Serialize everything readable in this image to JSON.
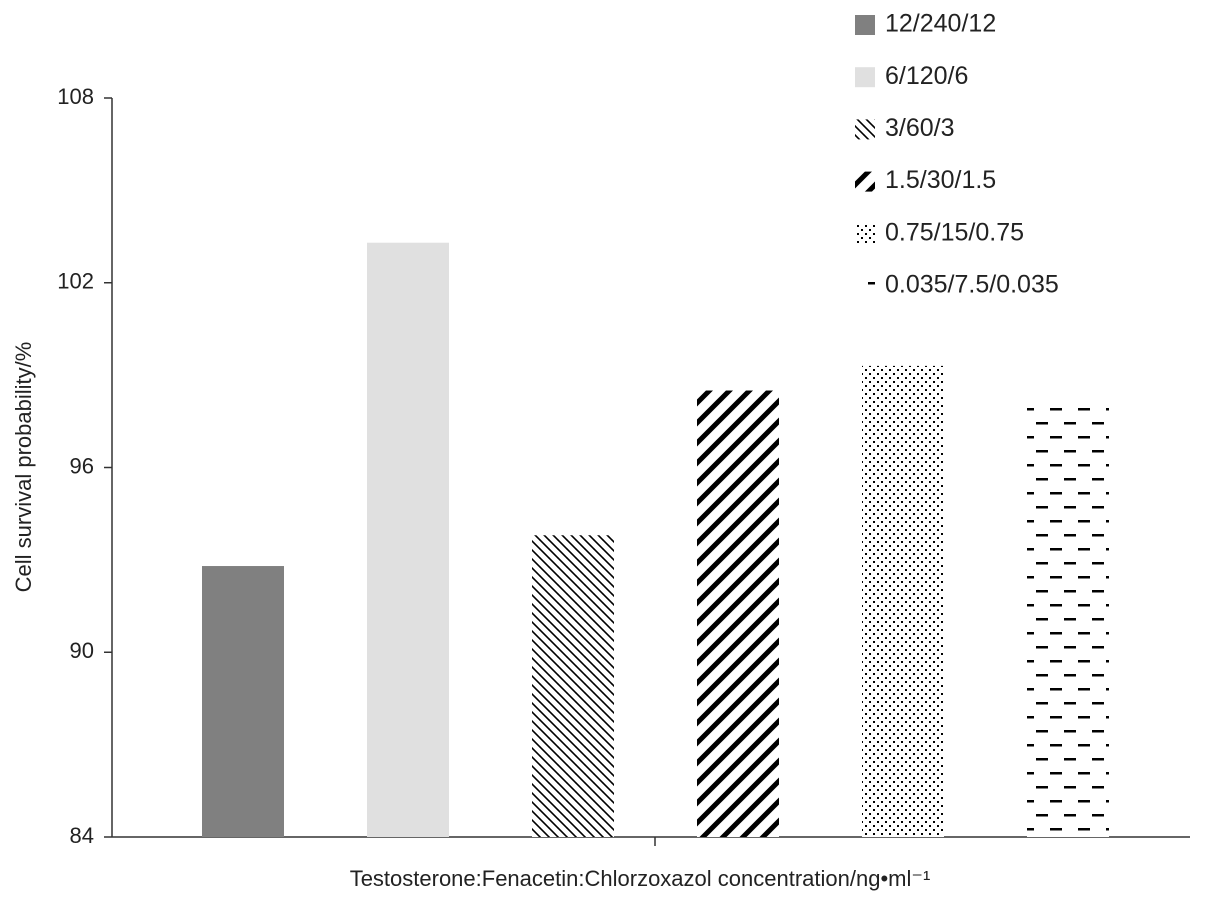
{
  "chart_data": {
    "type": "bar",
    "y_label": "Cell survival probability/%",
    "x_label": "Testosterone:Fenacetin:Chlorzoxazol concentration/ng•ml⁻¹",
    "ylim": [
      84,
      108
    ],
    "yticks": [
      84,
      90,
      96,
      102,
      108
    ],
    "legend": "top-right",
    "series": [
      {
        "name": "12/240/12",
        "color": "#808080",
        "pattern": "solid",
        "values": [
          92.8
        ]
      },
      {
        "name": "6/120/6",
        "color": "#e0e0e0",
        "pattern": "solid",
        "values": [
          103.3
        ]
      },
      {
        "name": "3/60/3",
        "color": "#000000",
        "pattern": "hatch-thin",
        "values": [
          93.8
        ]
      },
      {
        "name": "1.5/30/1.5",
        "color": "#000000",
        "pattern": "hatch-thick",
        "values": [
          98.5
        ]
      },
      {
        "name": "0.75/15/0.75",
        "color": "#000000",
        "pattern": "dots",
        "values": [
          99.3
        ]
      },
      {
        "name": "0.035/7.5/0.035",
        "color": "#000000",
        "pattern": "dashes",
        "values": [
          98.1
        ]
      }
    ]
  }
}
